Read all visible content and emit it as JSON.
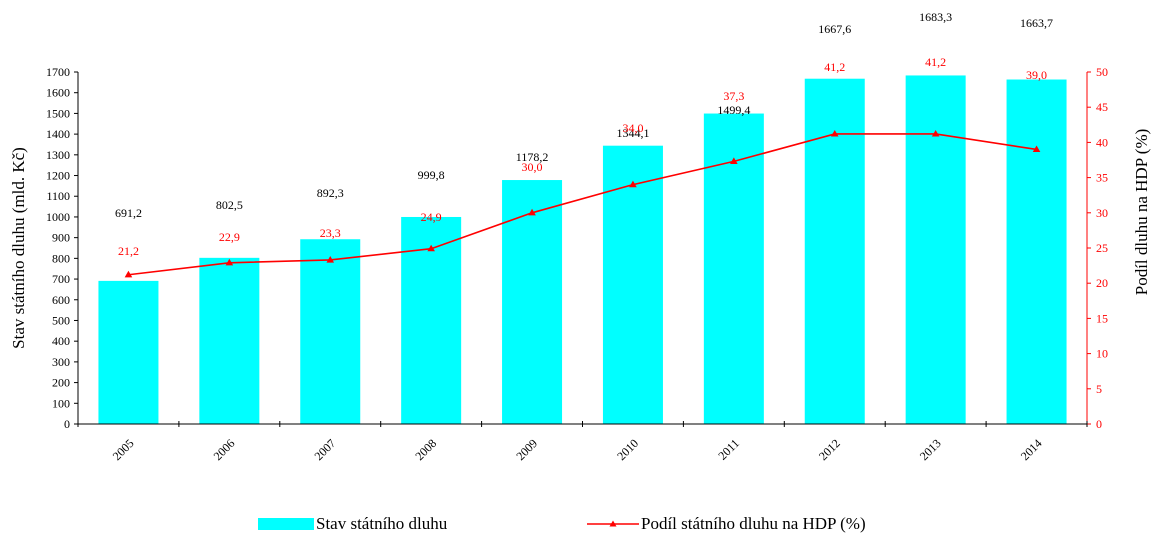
{
  "chart_data": {
    "type": "bar",
    "categories": [
      "2005",
      "2006",
      "2007",
      "2008",
      "2009",
      "2010",
      "2011",
      "2012",
      "2013",
      "2014"
    ],
    "series": [
      {
        "name": "Stav státního dluhu",
        "type": "bar",
        "axis": "left",
        "values": [
          691.2,
          802.5,
          892.3,
          999.8,
          1178.2,
          1344.1,
          1499.4,
          1667.6,
          1683.3,
          1663.7
        ],
        "labels": [
          "691,2",
          "802,5",
          "892,3",
          "999,8",
          "1178,2",
          "1344,1",
          "1499,4",
          "1667,6",
          "1683,3",
          "1663,7"
        ],
        "color": "#00FFFF"
      },
      {
        "name": "Podíl státního dluhu na HDP (%)",
        "type": "line",
        "axis": "right",
        "values": [
          21.2,
          22.9,
          23.3,
          24.9,
          30.0,
          34.0,
          37.3,
          41.2,
          41.2,
          39.0
        ],
        "labels": [
          "21,2",
          "22,9",
          "23,3",
          "24,9",
          "30,0",
          "34,0",
          "37,3",
          "41,2",
          "41,2",
          "39,0"
        ],
        "color": "#FF0000",
        "marker": "triangle"
      }
    ],
    "ylabel": "Stav státního dluhu (mld. Kč)",
    "ylabel_right": "Podíl dluhu na HDP (%)",
    "ylim": [
      0,
      1700
    ],
    "ylim_right": [
      0,
      50
    ],
    "yticks": [
      "0",
      "100",
      "200",
      "300",
      "400",
      "500",
      "600",
      "700",
      "800",
      "900",
      "1000",
      "1100",
      "1200",
      "1300",
      "1400",
      "1500",
      "1600",
      "1700"
    ],
    "yticks_right": [
      "0",
      "5",
      "10",
      "15",
      "20",
      "25",
      "30",
      "35",
      "40",
      "45",
      "50"
    ],
    "grid": false,
    "legend_position": "bottom"
  }
}
